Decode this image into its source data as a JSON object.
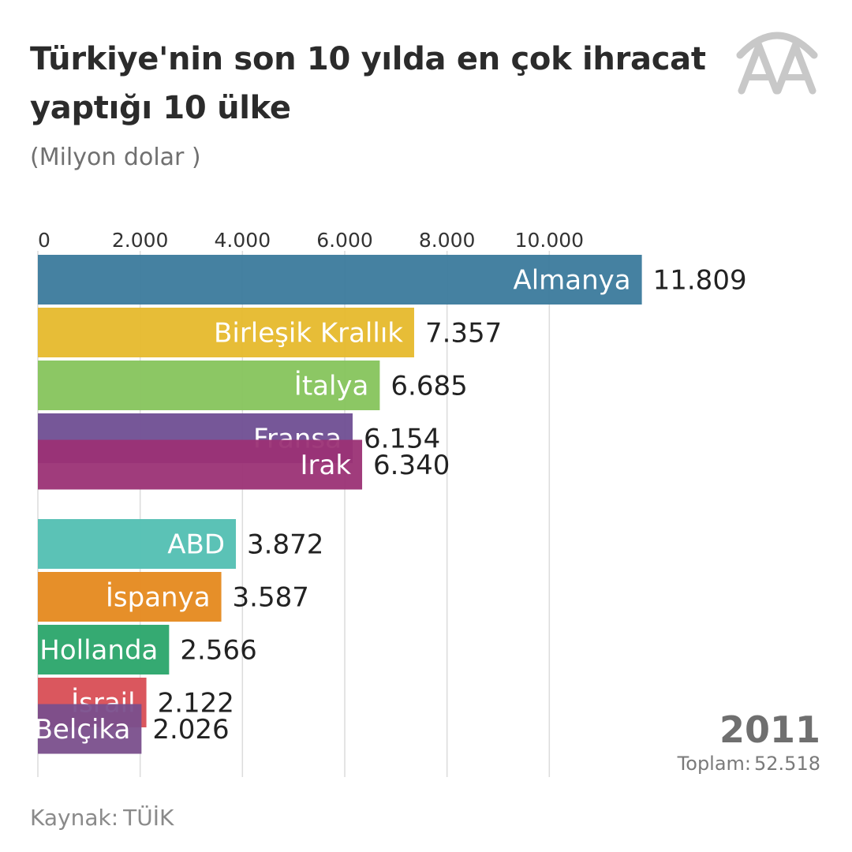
{
  "header": {
    "title": "Türkiye'nin son 10 yılda en çok ihracat yaptığı 10 ülke",
    "subtitle": "(Milyon dolar )",
    "logo_text": "AA"
  },
  "footer": {
    "year": "2011",
    "total_label": "Toplam:",
    "total_value": "52.518",
    "source_label": "Kaynak:",
    "source_value": "TÜİK"
  },
  "colors": {
    "grid": "#dcdcdc",
    "axis_text": "#333333",
    "value_text": "#222222",
    "logo": "#c8c8c8"
  },
  "chart_data": {
    "type": "bar",
    "orientation": "horizontal",
    "xlim": [
      0,
      12000
    ],
    "x_ticks": [
      0,
      2000,
      4000,
      6000,
      8000,
      10000
    ],
    "x_tick_labels": [
      "0",
      "2.000",
      "4.000",
      "6.000",
      "8.000",
      "10.000"
    ],
    "grid": true,
    "bars": [
      {
        "label": "Almanya",
        "value": 11809,
        "value_label": "11.809",
        "color": "#3b7a9c",
        "rank": 0
      },
      {
        "label": "Birleşik Krallık",
        "value": 7357,
        "value_label": "7.357",
        "color": "#e6b92c",
        "rank": 1
      },
      {
        "label": "İtalya",
        "value": 6685,
        "value_label": "6.685",
        "color": "#86c45c",
        "rank": 2
      },
      {
        "label": "Fransa",
        "value": 6154,
        "value_label": "6.154",
        "color": "#6f4e92",
        "rank": 3
      },
      {
        "label": "Irak",
        "value": 6340,
        "value_label": "6.340",
        "color": "#9b3275",
        "rank": 3.5
      },
      {
        "label": "ABD",
        "value": 3872,
        "value_label": "3.872",
        "color": "#52bfb2",
        "rank": 5
      },
      {
        "label": "İspanya",
        "value": 3587,
        "value_label": "3.587",
        "color": "#e5891e",
        "rank": 6
      },
      {
        "label": "Hollanda",
        "value": 2566,
        "value_label": "2.566",
        "color": "#2aa56a",
        "rank": 7
      },
      {
        "label": "İsrail",
        "value": 2122,
        "value_label": "2.122",
        "color": "#d84e55",
        "rank": 8
      },
      {
        "label": "Belçika",
        "value": 2026,
        "value_label": "2.026",
        "color": "#7a4f8c",
        "rank": 8.5
      }
    ]
  }
}
